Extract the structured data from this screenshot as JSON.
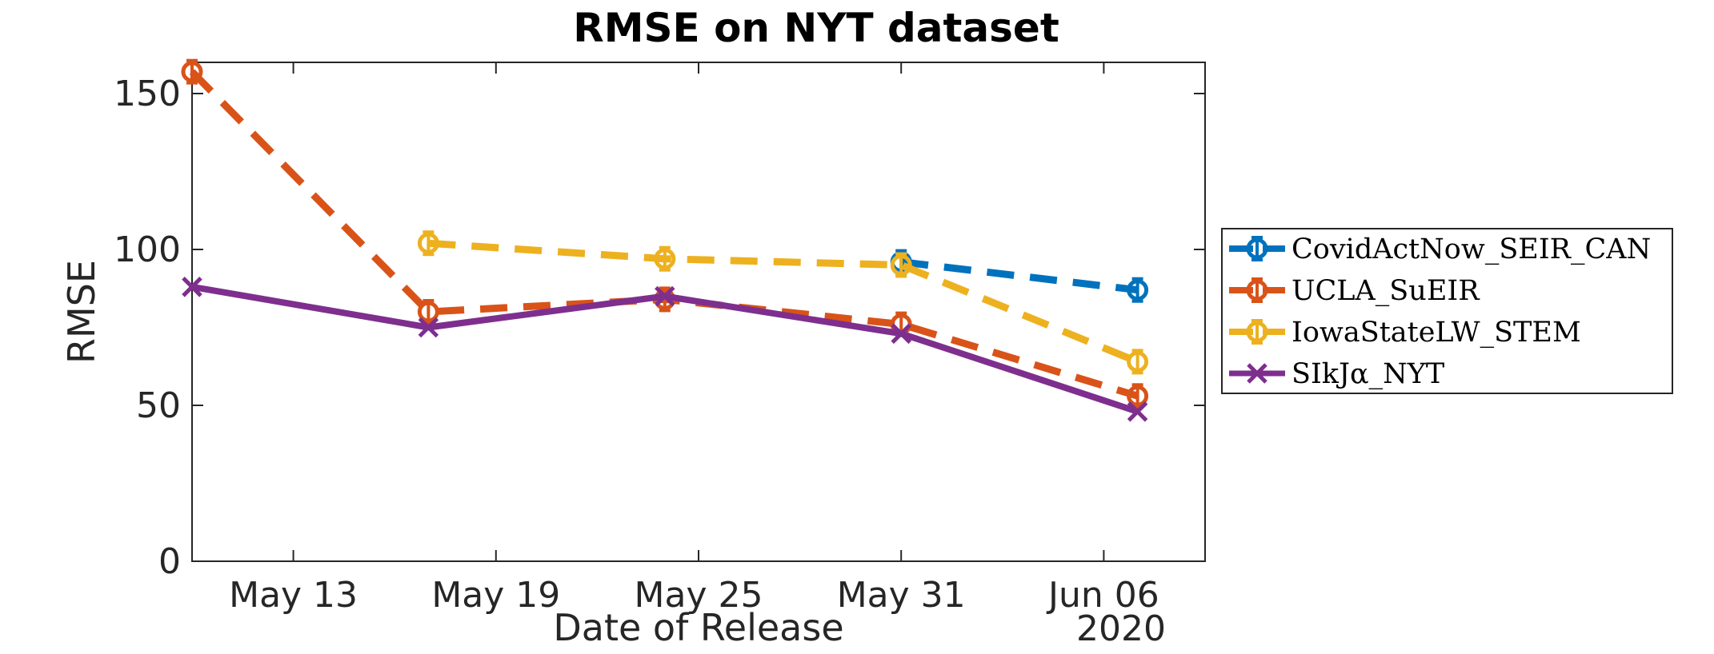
{
  "chart_data": {
    "type": "line",
    "title": "RMSE on NYT dataset",
    "xlabel": "Date of Release",
    "ylabel": "RMSE",
    "x_axis_type": "date",
    "xlim": [
      "2020-05-10",
      "2020-06-09"
    ],
    "ylim": [
      0,
      160
    ],
    "x_ticks": [
      "2020-05-13",
      "2020-05-19",
      "2020-05-25",
      "2020-05-31",
      "2020-06-06"
    ],
    "x_tick_labels": [
      "May 13",
      "May 19",
      "May 25",
      "May 31",
      "Jun 06"
    ],
    "x_secondary_label": "2020",
    "y_ticks": [
      0,
      50,
      100,
      150
    ],
    "y_tick_labels": [
      "0",
      "50",
      "100",
      "150"
    ],
    "grid": false,
    "legend_position": "outside-right",
    "series": [
      {
        "name": "CovidActNow_SEIR_CAN",
        "color": "#0072BD",
        "line_style": "dashed",
        "marker": "circle-with-errorbar",
        "points": [
          {
            "x": "2020-05-31",
            "y": 96
          },
          {
            "x": "2020-06-07",
            "y": 87
          }
        ]
      },
      {
        "name": "UCLA_SuEIR",
        "color": "#D95319",
        "line_style": "dashed",
        "marker": "circle-with-errorbar",
        "points": [
          {
            "x": "2020-05-10",
            "y": 157
          },
          {
            "x": "2020-05-17",
            "y": 80
          },
          {
            "x": "2020-05-24",
            "y": 84
          },
          {
            "x": "2020-05-31",
            "y": 76
          },
          {
            "x": "2020-06-07",
            "y": 53
          }
        ]
      },
      {
        "name": "IowaStateLW_STEM",
        "color": "#EDB120",
        "line_style": "dashed",
        "marker": "circle-with-errorbar",
        "points": [
          {
            "x": "2020-05-17",
            "y": 102
          },
          {
            "x": "2020-05-24",
            "y": 97
          },
          {
            "x": "2020-05-31",
            "y": 95
          },
          {
            "x": "2020-06-07",
            "y": 64
          }
        ]
      },
      {
        "name": "SIkJα_NYT",
        "color": "#7E2F8E",
        "line_style": "solid",
        "marker": "x",
        "points": [
          {
            "x": "2020-05-10",
            "y": 88
          },
          {
            "x": "2020-05-17",
            "y": 75
          },
          {
            "x": "2020-05-24",
            "y": 85
          },
          {
            "x": "2020-05-31",
            "y": 73
          },
          {
            "x": "2020-06-07",
            "y": 48
          }
        ]
      }
    ]
  }
}
